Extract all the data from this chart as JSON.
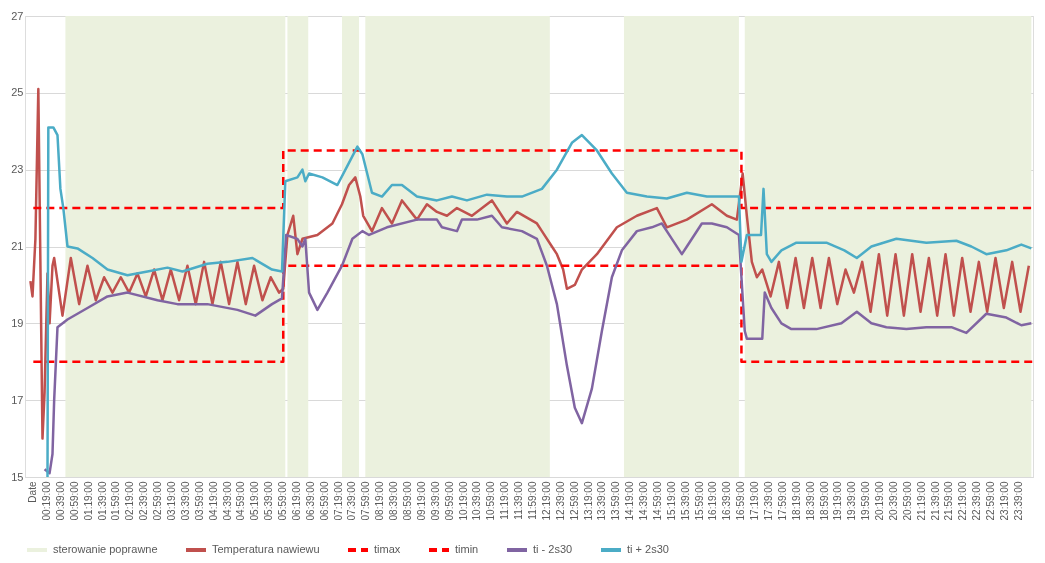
{
  "chart_data": {
    "type": "line",
    "ylim": [
      15,
      27
    ],
    "yticks": [
      15,
      17,
      19,
      21,
      23,
      25,
      27
    ],
    "xlim": [
      -0.2,
      24.0
    ],
    "xticks": [
      {
        "value": -0.017,
        "label": "Date"
      },
      {
        "value": 0.31667,
        "label": "00:19:00"
      },
      {
        "value": 0.65,
        "label": "00:39:00"
      },
      {
        "value": 0.98333,
        "label": "00:59:00"
      },
      {
        "value": 1.31667,
        "label": "01:19:00"
      },
      {
        "value": 1.65,
        "label": "01:39:00"
      },
      {
        "value": 1.98333,
        "label": "01:59:00"
      },
      {
        "value": 2.31667,
        "label": "02:19:00"
      },
      {
        "value": 2.65,
        "label": "02:39:00"
      },
      {
        "value": 2.98333,
        "label": "02:59:00"
      },
      {
        "value": 3.31667,
        "label": "03:19:00"
      },
      {
        "value": 3.65,
        "label": "03:39:00"
      },
      {
        "value": 3.98333,
        "label": "03:59:00"
      },
      {
        "value": 4.31667,
        "label": "04:19:00"
      },
      {
        "value": 4.65,
        "label": "04:39:00"
      },
      {
        "value": 4.98333,
        "label": "04:59:00"
      },
      {
        "value": 5.31667,
        "label": "05:19:00"
      },
      {
        "value": 5.65,
        "label": "05:39:00"
      },
      {
        "value": 5.98333,
        "label": "05:59:00"
      },
      {
        "value": 6.31667,
        "label": "06:19:00"
      },
      {
        "value": 6.65,
        "label": "06:39:00"
      },
      {
        "value": 6.98333,
        "label": "06:59:00"
      },
      {
        "value": 7.31667,
        "label": "07:19:00"
      },
      {
        "value": 7.65,
        "label": "07:39:00"
      },
      {
        "value": 7.98333,
        "label": "07:59:00"
      },
      {
        "value": 8.31667,
        "label": "08:19:00"
      },
      {
        "value": 8.65,
        "label": "08:39:00"
      },
      {
        "value": 8.98333,
        "label": "08:59:00"
      },
      {
        "value": 9.31667,
        "label": "09:19:00"
      },
      {
        "value": 9.65,
        "label": "09:39:00"
      },
      {
        "value": 9.98333,
        "label": "09:59:00"
      },
      {
        "value": 10.31667,
        "label": "10:19:00"
      },
      {
        "value": 10.65,
        "label": "10:39:00"
      },
      {
        "value": 10.98333,
        "label": "10:59:00"
      },
      {
        "value": 11.31667,
        "label": "11:19:00"
      },
      {
        "value": 11.65,
        "label": "11:39:00"
      },
      {
        "value": 11.98333,
        "label": "11:59:00"
      },
      {
        "value": 12.31667,
        "label": "12:19:00"
      },
      {
        "value": 12.65,
        "label": "12:39:00"
      },
      {
        "value": 12.98333,
        "label": "12:59:00"
      },
      {
        "value": 13.31667,
        "label": "13:19:00"
      },
      {
        "value": 13.65,
        "label": "13:39:00"
      },
      {
        "value": 13.98333,
        "label": "13:59:00"
      },
      {
        "value": 14.31667,
        "label": "14:19:00"
      },
      {
        "value": 14.65,
        "label": "14:39:00"
      },
      {
        "value": 14.98333,
        "label": "14:59:00"
      },
      {
        "value": 15.31667,
        "label": "15:19:00"
      },
      {
        "value": 15.65,
        "label": "15:39:00"
      },
      {
        "value": 15.98333,
        "label": "15:59:00"
      },
      {
        "value": 16.31667,
        "label": "16:19:00"
      },
      {
        "value": 16.65,
        "label": "16:39:00"
      },
      {
        "value": 16.98333,
        "label": "16:59:00"
      },
      {
        "value": 17.31667,
        "label": "17:19:00"
      },
      {
        "value": 17.65,
        "label": "17:39:00"
      },
      {
        "value": 17.98333,
        "label": "17:59:00"
      },
      {
        "value": 18.31667,
        "label": "18:19:00"
      },
      {
        "value": 18.65,
        "label": "18:39:00"
      },
      {
        "value": 18.98333,
        "label": "18:59:00"
      },
      {
        "value": 19.31667,
        "label": "19:19:00"
      },
      {
        "value": 19.65,
        "label": "19:39:00"
      },
      {
        "value": 19.98333,
        "label": "19:59:00"
      },
      {
        "value": 20.31667,
        "label": "20:19:00"
      },
      {
        "value": 20.65,
        "label": "20:39:00"
      },
      {
        "value": 20.98333,
        "label": "20:59:00"
      },
      {
        "value": 21.31667,
        "label": "21:19:00"
      },
      {
        "value": 21.65,
        "label": "21:39:00"
      },
      {
        "value": 21.98333,
        "label": "21:59:00"
      },
      {
        "value": 22.31667,
        "label": "22:19:00"
      },
      {
        "value": 22.65,
        "label": "22:39:00"
      },
      {
        "value": 22.98333,
        "label": "22:59:00"
      },
      {
        "value": 23.31667,
        "label": "23:19:00"
      },
      {
        "value": 23.65,
        "label": "23:39:00"
      }
    ],
    "grid": "y",
    "legend": "bottom",
    "bands": [
      {
        "axis": "x",
        "from": 0.77,
        "to": 6.05,
        "label": "sterowanie poprawne",
        "color": "#ebf1de"
      },
      {
        "axis": "x",
        "from": 6.1,
        "to": 6.6,
        "color": "#ebf1de"
      },
      {
        "axis": "x",
        "from": 7.41,
        "to": 7.82,
        "color": "#ebf1de"
      },
      {
        "axis": "x",
        "from": 7.97,
        "to": 12.4,
        "color": "#ebf1de"
      },
      {
        "axis": "x",
        "from": 14.18,
        "to": 16.94,
        "color": "#ebf1de"
      },
      {
        "axis": "x",
        "from": 17.08,
        "to": 23.96,
        "color": "#ebf1de"
      }
    ],
    "series": [
      {
        "name": "Temperatura nawiewu",
        "color": "#c0504d",
        "line_style": "solid",
        "x": [
          -0.07,
          -0.02,
          0.05,
          0.12,
          0.22,
          0.27,
          0.34,
          0.39,
          0.46,
          0.5,
          0.7,
          0.9,
          1.1,
          1.3,
          1.5,
          1.7,
          1.9,
          2.1,
          2.3,
          2.5,
          2.7,
          2.9,
          3.1,
          3.3,
          3.5,
          3.7,
          3.9,
          4.1,
          4.3,
          4.5,
          4.7,
          4.9,
          5.1,
          5.3,
          5.5,
          5.7,
          5.9,
          6.0,
          6.1,
          6.24,
          6.34,
          6.46,
          6.82,
          7.18,
          7.41,
          7.58,
          7.73,
          7.85,
          7.92,
          8.13,
          8.37,
          8.61,
          8.85,
          9.21,
          9.45,
          9.69,
          9.93,
          10.17,
          10.53,
          11.01,
          11.37,
          11.61,
          12.09,
          12.21,
          12.45,
          12.57,
          12.72,
          12.81,
          13.0,
          13.17,
          13.53,
          14.01,
          14.49,
          14.97,
          15.21,
          15.69,
          16.29,
          16.65,
          16.89,
          16.96,
          17.03,
          17.13,
          17.25,
          17.37,
          17.5,
          17.7,
          17.9,
          18.1,
          18.3,
          18.5,
          18.7,
          18.9,
          19.1,
          19.3,
          19.5,
          19.7,
          19.9,
          20.1,
          20.3,
          20.5,
          20.7,
          20.9,
          21.1,
          21.3,
          21.5,
          21.7,
          21.9,
          22.1,
          22.3,
          22.5,
          22.7,
          22.9,
          23.1,
          23.3,
          23.5,
          23.7,
          23.9
        ],
        "values": [
          20.1,
          19.7,
          21.2,
          25.1,
          16.0,
          17.2,
          20.3,
          19.0,
          20.5,
          20.7,
          19.2,
          20.7,
          19.5,
          20.5,
          19.6,
          20.2,
          19.8,
          20.2,
          19.8,
          20.3,
          19.7,
          20.4,
          19.6,
          20.4,
          19.6,
          20.5,
          19.5,
          20.6,
          19.5,
          20.6,
          19.5,
          20.6,
          19.5,
          20.5,
          19.6,
          20.2,
          19.8,
          19.9,
          21.3,
          21.8,
          20.8,
          21.2,
          21.3,
          21.6,
          22.1,
          22.6,
          22.8,
          22.3,
          21.8,
          21.4,
          22.0,
          21.6,
          22.2,
          21.7,
          22.1,
          21.9,
          21.8,
          22.0,
          21.8,
          22.2,
          21.6,
          21.9,
          21.6,
          21.4,
          21.0,
          20.8,
          20.4,
          19.9,
          20.0,
          20.4,
          20.8,
          21.5,
          21.8,
          22.0,
          21.5,
          21.7,
          22.1,
          21.8,
          21.7,
          22.3,
          22.9,
          21.8,
          20.6,
          20.2,
          20.4,
          19.7,
          20.6,
          19.4,
          20.7,
          19.4,
          20.7,
          19.4,
          20.7,
          19.5,
          20.4,
          19.8,
          20.6,
          19.3,
          20.8,
          19.2,
          20.8,
          19.2,
          20.8,
          19.3,
          20.7,
          19.2,
          20.8,
          19.2,
          20.7,
          19.3,
          20.6,
          19.3,
          20.7,
          19.4,
          20.6,
          19.3,
          20.5
        ]
      },
      {
        "name": "timax",
        "color": "#ff0000",
        "line_style": "dashed",
        "x": [
          0,
          6.0,
          6.0,
          17.0,
          17.0,
          24.0
        ],
        "values": [
          22,
          22,
          23.5,
          23.5,
          22,
          22
        ]
      },
      {
        "name": "timin",
        "color": "#ff0000",
        "line_style": "dashed",
        "x": [
          0,
          6.0,
          6.0,
          17.0,
          17.0,
          24.0
        ],
        "values": [
          18,
          18,
          20.5,
          20.5,
          18,
          18
        ]
      },
      {
        "name": "ti - 2s30",
        "color": "#8064a2",
        "line_style": "solid",
        "x": [
          0.27,
          0.39,
          0.46,
          0.5,
          0.58,
          0.82,
          1.3,
          1.78,
          2.26,
          2.98,
          3.46,
          4.18,
          4.9,
          5.33,
          5.73,
          5.97,
          6.07,
          6.34,
          6.46,
          6.53,
          6.62,
          6.82,
          7.06,
          7.41,
          7.66,
          7.9,
          8.06,
          8.49,
          9.21,
          9.69,
          9.81,
          10.17,
          10.29,
          10.65,
          11.01,
          11.25,
          11.73,
          12.09,
          12.33,
          12.57,
          12.81,
          13.0,
          13.17,
          13.41,
          13.65,
          13.89,
          14.13,
          14.49,
          14.85,
          15.09,
          15.33,
          15.57,
          15.69,
          16.05,
          16.29,
          16.65,
          16.94,
          17.0,
          17.08,
          17.13,
          17.5,
          17.56,
          17.72,
          17.96,
          18.2,
          18.8,
          19.4,
          19.77,
          20.12,
          20.48,
          20.96,
          21.44,
          22.04,
          22.4,
          22.88,
          23.36,
          23.72,
          23.96
        ],
        "values": [
          15.2,
          15.1,
          15.6,
          17.0,
          18.9,
          19.1,
          19.4,
          19.7,
          19.8,
          19.6,
          19.5,
          19.5,
          19.35,
          19.2,
          19.5,
          19.65,
          21.3,
          21.2,
          21.0,
          21.2,
          19.8,
          19.35,
          19.8,
          20.5,
          21.2,
          21.4,
          21.3,
          21.5,
          21.7,
          21.7,
          21.5,
          21.4,
          21.7,
          21.7,
          21.8,
          21.5,
          21.4,
          21.2,
          20.5,
          19.5,
          17.9,
          16.8,
          16.4,
          17.3,
          18.8,
          20.2,
          20.9,
          21.4,
          21.5,
          21.6,
          21.2,
          20.8,
          21.0,
          21.6,
          21.6,
          21.5,
          21.3,
          20.2,
          18.8,
          18.6,
          18.6,
          19.8,
          19.4,
          19.0,
          18.85,
          18.85,
          19.0,
          19.3,
          19.0,
          18.9,
          18.85,
          18.9,
          18.9,
          18.75,
          19.25,
          19.15,
          18.95,
          19.0
        ]
      },
      {
        "name": "ti + 2s30",
        "color": "#4bacc6",
        "line_style": "solid",
        "x": [
          0.34,
          0.36,
          0.48,
          0.58,
          0.65,
          0.72,
          0.82,
          1.06,
          1.42,
          1.78,
          2.26,
          2.74,
          3.22,
          3.58,
          4.18,
          4.66,
          5.26,
          5.73,
          5.97,
          6.05,
          6.34,
          6.46,
          6.53,
          6.62,
          6.94,
          7.3,
          7.54,
          7.78,
          7.9,
          8.13,
          8.37,
          8.61,
          8.85,
          9.21,
          9.69,
          10.05,
          10.41,
          10.89,
          11.37,
          11.73,
          12.21,
          12.57,
          12.93,
          13.17,
          13.53,
          13.89,
          14.25,
          14.73,
          15.21,
          15.69,
          16.17,
          16.94,
          17.0,
          17.13,
          17.47,
          17.53,
          17.61,
          17.72,
          17.96,
          18.32,
          19.04,
          19.47,
          19.77,
          20.12,
          20.72,
          21.44,
          22.16,
          22.52,
          22.88,
          23.36,
          23.72,
          23.96
        ],
        "values": [
          15.0,
          24.1,
          24.1,
          23.9,
          22.5,
          22.0,
          21.0,
          20.95,
          20.7,
          20.4,
          20.25,
          20.35,
          20.45,
          20.35,
          20.55,
          20.6,
          20.7,
          20.4,
          20.35,
          22.7,
          22.8,
          23.0,
          22.7,
          22.9,
          22.8,
          22.6,
          23.1,
          23.6,
          23.4,
          22.4,
          22.3,
          22.6,
          22.6,
          22.3,
          22.2,
          22.3,
          22.2,
          22.35,
          22.3,
          22.3,
          22.5,
          23.0,
          23.7,
          23.9,
          23.5,
          22.9,
          22.4,
          22.3,
          22.25,
          22.4,
          22.3,
          22.3,
          20.6,
          21.3,
          21.3,
          22.5,
          20.8,
          20.6,
          20.9,
          21.1,
          21.1,
          20.9,
          20.7,
          21.0,
          21.2,
          21.1,
          21.15,
          21.0,
          20.8,
          20.9,
          21.05,
          20.95
        ]
      }
    ]
  }
}
